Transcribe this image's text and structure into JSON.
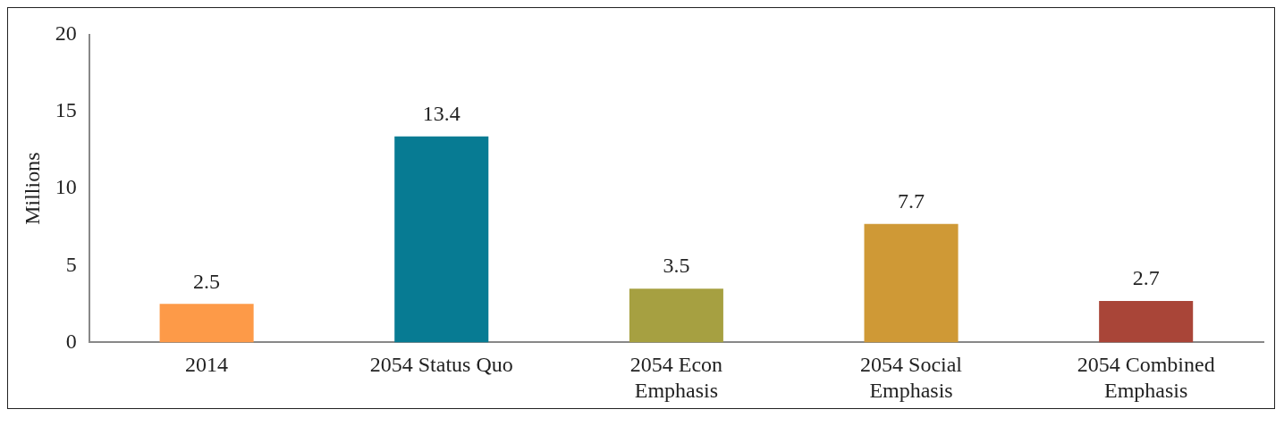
{
  "chart_data": {
    "type": "bar",
    "ylabel": "Millions",
    "categories": [
      "2014",
      "2054 Status Quo",
      "2054 Econ Emphasis",
      "2054 Social Emphasis",
      "2054 Combined Emphasis"
    ],
    "values": [
      2.5,
      13.4,
      3.5,
      7.7,
      2.7
    ],
    "colors": [
      "#fd9a48",
      "#077b93",
      "#a6a041",
      "#cf9936",
      "#a94538"
    ],
    "ylim": [
      0,
      20
    ],
    "yticks": [
      0,
      5,
      10,
      15,
      20
    ],
    "grid": false,
    "legend": false,
    "data_labels": true
  }
}
